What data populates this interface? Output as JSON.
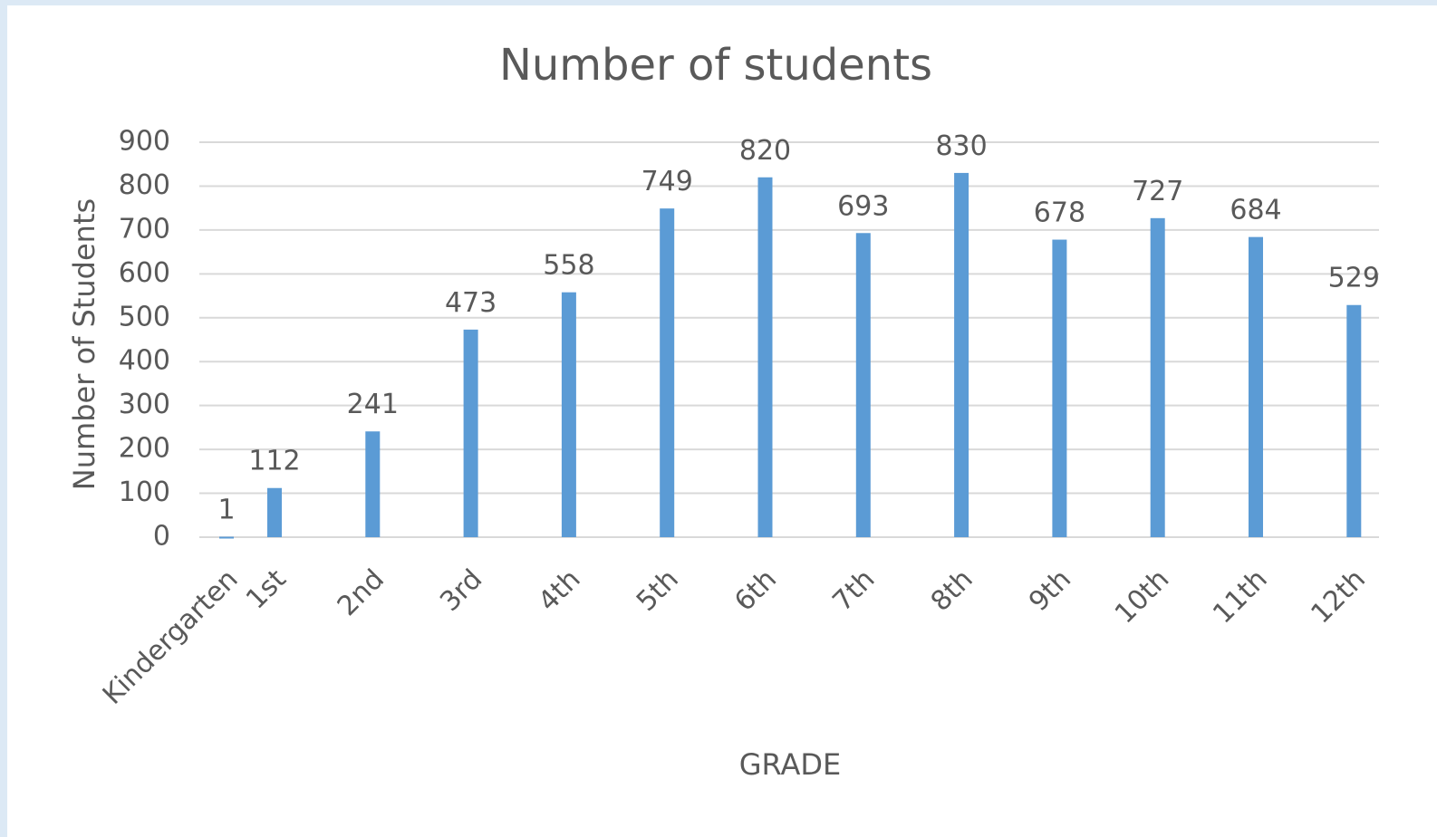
{
  "chart_data": {
    "type": "bar",
    "title": "Number of students",
    "x_label": "GRADE",
    "y_label": "Number of Students",
    "categories": [
      "Kindergarten",
      "1st",
      "2nd",
      "3rd",
      "4th",
      "5th",
      "6th",
      "7th",
      "8th",
      "9th",
      "10th",
      "11th",
      "12th"
    ],
    "values": [
      1,
      112,
      241,
      473,
      558,
      749,
      820,
      693,
      830,
      678,
      727,
      684,
      529
    ],
    "color": "#5b9bd5",
    "ylim": [
      0,
      900
    ],
    "yticks": [
      0,
      100,
      200,
      300,
      400,
      500,
      600,
      700,
      800,
      900
    ],
    "grid": true
  }
}
